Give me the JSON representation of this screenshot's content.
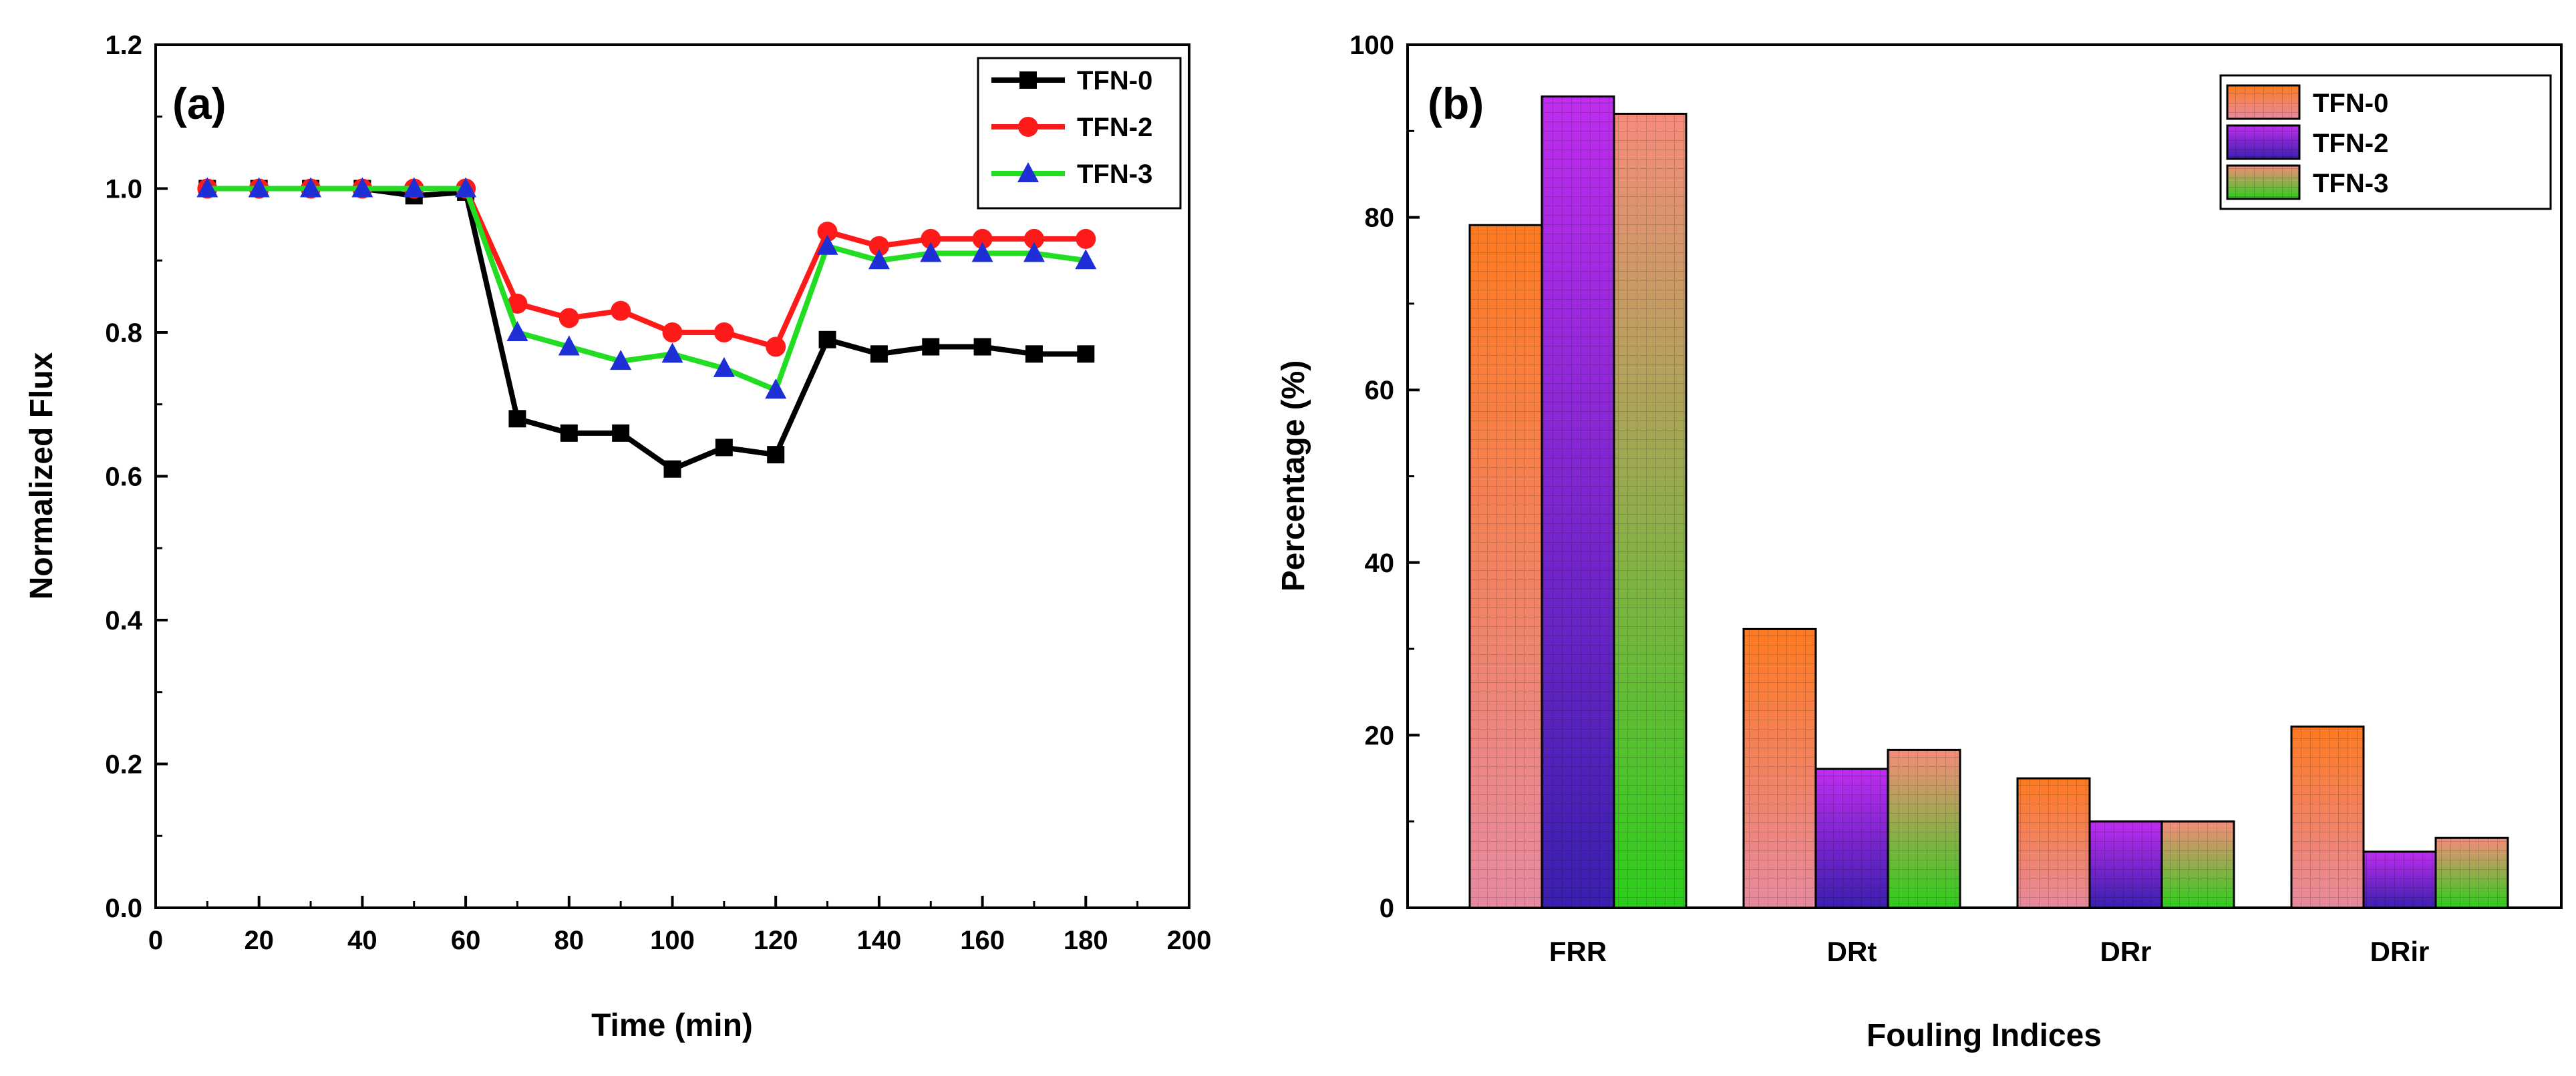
{
  "colors": {
    "tfn0": "#000000",
    "tfn2": "#ff1a1a",
    "tfn3": "#22dd22",
    "tfn3_marker": "#1e2fd6",
    "bar_tfn0_top": "#ff7a1f",
    "bar_tfn0_bottom": "#e88aa0",
    "bar_tfn2_top": "#c02cf0",
    "bar_tfn2_bottom": "#3a1fb0",
    "bar_tfn3_top": "#f78b7a",
    "bar_tfn3_bottom": "#2bcf1a"
  },
  "chart_data": [
    {
      "panel_label": "(a)",
      "type": "line",
      "title": "",
      "xlabel": "Time (min)",
      "ylabel": "Normalized Flux",
      "xlim": [
        0,
        200
      ],
      "ylim": [
        0.0,
        1.2
      ],
      "xticks": [
        "0",
        "20",
        "40",
        "60",
        "80",
        "100",
        "120",
        "140",
        "160",
        "180",
        "200"
      ],
      "yticks": [
        "0.0",
        "0.2",
        "0.4",
        "0.6",
        "0.8",
        "1.0",
        "1.2"
      ],
      "grid": false,
      "legend_position": "top-right",
      "x": [
        10,
        20,
        30,
        40,
        50,
        60,
        70,
        80,
        90,
        100,
        110,
        120,
        130,
        140,
        150,
        160,
        170,
        180
      ],
      "series": [
        {
          "name": "TFN-0",
          "marker": "square",
          "values": [
            1.0,
            1.0,
            1.0,
            1.0,
            0.99,
            0.995,
            0.68,
            0.66,
            0.66,
            0.61,
            0.64,
            0.63,
            0.79,
            0.77,
            0.78,
            0.78,
            0.77,
            0.77
          ]
        },
        {
          "name": "TFN-2",
          "marker": "circle",
          "values": [
            1.0,
            1.0,
            1.0,
            1.0,
            1.0,
            1.0,
            0.84,
            0.82,
            0.83,
            0.8,
            0.8,
            0.78,
            0.94,
            0.92,
            0.93,
            0.93,
            0.93,
            0.93
          ]
        },
        {
          "name": "TFN-3",
          "marker": "triangle",
          "values": [
            1.0,
            1.0,
            1.0,
            1.0,
            1.0,
            1.0,
            0.8,
            0.78,
            0.76,
            0.77,
            0.75,
            0.72,
            0.92,
            0.9,
            0.91,
            0.91,
            0.91,
            0.9
          ]
        }
      ]
    },
    {
      "panel_label": "(b)",
      "type": "bar",
      "title": "",
      "xlabel": "Fouling Indices",
      "ylabel": "Percentage (%)",
      "ylim": [
        0,
        100
      ],
      "yticks": [
        "0",
        "20",
        "40",
        "60",
        "80",
        "100"
      ],
      "grid": false,
      "legend_position": "top-right",
      "categories": [
        "FRR",
        "DRt",
        "DRr",
        "DRir"
      ],
      "series": [
        {
          "name": "TFN-0",
          "values": [
            79.1,
            32.3,
            15.0,
            21.0
          ]
        },
        {
          "name": "TFN-2",
          "values": [
            94.0,
            16.1,
            10.0,
            6.5
          ]
        },
        {
          "name": "TFN-3",
          "values": [
            92.0,
            18.3,
            10.0,
            8.1
          ]
        }
      ]
    }
  ]
}
